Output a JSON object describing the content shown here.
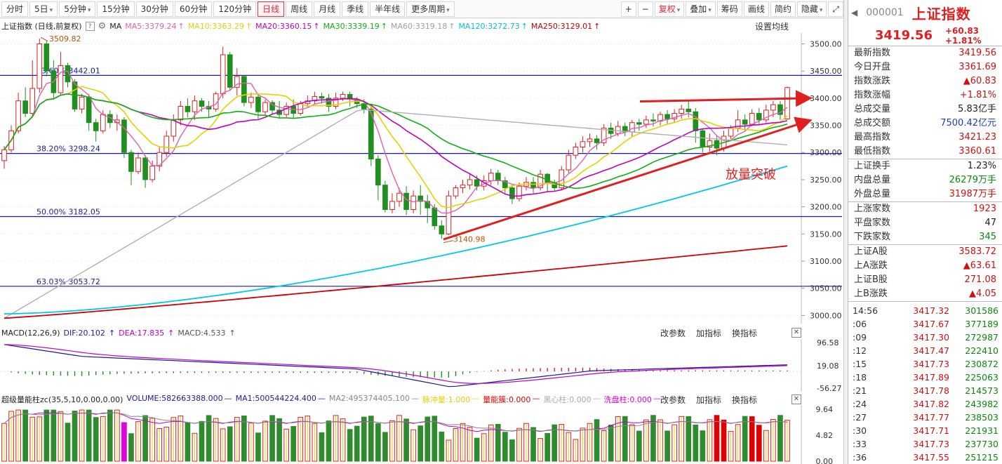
{
  "toolbar": {
    "periods": [
      "分时",
      "5日",
      "5分钟",
      "15分钟",
      "30分钟",
      "60分钟",
      "120分钟",
      "日线",
      "周线",
      "月线",
      "季线",
      "半年线",
      "更多周期"
    ],
    "active": "日线",
    "right": [
      "+",
      "−",
      "复权",
      "叠加",
      "筹码",
      "画线",
      "简约",
      "隐藏"
    ]
  },
  "ma_header": {
    "title": "上证指数 (日线,前复权)",
    "ma": "MA",
    "items": [
      {
        "label": "MA5:3379.24",
        "color": "#e060b0"
      },
      {
        "label": "MA10:3363.29",
        "color": "#e8d000"
      },
      {
        "label": "MA20:3360.15",
        "color": "#c000c0"
      },
      {
        "label": "MA30:3339.19",
        "color": "#10b010"
      },
      {
        "label": "MA60:3319.18",
        "color": "#a0a0a0"
      },
      {
        "label": "MA120:3272.73",
        "color": "#00c0e0"
      },
      {
        "label": "MA250:3129.01",
        "color": "#c00000"
      }
    ],
    "settings": "设置均线"
  },
  "price_axis": [
    "3500.00",
    "3450.00",
    "3400.00",
    "3350.00",
    "3300.00",
    "3250.00",
    "3200.00",
    "3150.00",
    "3100.00",
    "3050.00",
    "3000.00"
  ],
  "fib": [
    {
      "label": "23.60% 3442.01",
      "value": 3442.01
    },
    {
      "label": "38.20% 3298.24",
      "value": 3298.24
    },
    {
      "label": "50.00% 3182.05",
      "value": 3182.05
    },
    {
      "label": "63.03% 3053.72",
      "value": 3053.72
    }
  ],
  "annotations": {
    "high": "3509.82",
    "low": "3140.98",
    "breakout": "放量突破"
  },
  "macd": {
    "title": "MACD(12,26,9)",
    "dif": "DIF:20.102",
    "dea": "DEA:17.835",
    "macd": "MACD:4.533",
    "axis": [
      "96.58",
      "19.08",
      "-56.27"
    ]
  },
  "volume": {
    "title": "超级量能柱zc(35,5,10,0.00,0.00)",
    "items": [
      {
        "label": "VOLUME:582663388.000",
        "color": "#1a1aa0"
      },
      {
        "label": "MA1:500544224.400",
        "color": "#1a1aa0"
      },
      {
        "label": "MA2:495374405.100",
        "color": "#888888"
      },
      {
        "label": "脉冲量:1.000",
        "color": "#e8d000"
      },
      {
        "label": "量能簇:0.000",
        "color": "#e00000"
      },
      {
        "label": "黑心柱:0.000",
        "color": "#aaaaaa"
      },
      {
        "label": "洗盘柱:0.000",
        "color": "#e000e0"
      }
    ],
    "axis": [
      "9.64",
      "4.82",
      "0.00"
    ]
  },
  "indicator_buttons": [
    "改参数",
    "加指标",
    "换指标"
  ],
  "panel": {
    "code": "000001",
    "name": "上证指数",
    "price": "3419.56",
    "change": "+60.83",
    "change_pct": "+1.81%",
    "stats": [
      {
        "label": "最新指数",
        "value": "3419.56",
        "cls": "red"
      },
      {
        "label": "今日开盘",
        "value": "3361.69",
        "cls": "red"
      },
      {
        "label": "指数涨跌",
        "value": "▲60.83",
        "cls": "red"
      },
      {
        "label": "指数涨幅",
        "value": "+1.81%",
        "cls": "red"
      },
      {
        "label": "总成交量",
        "value": "5.83亿手",
        "cls": ""
      },
      {
        "label": "总成交额",
        "value": "7500.42亿元",
        "cls": "blue"
      },
      {
        "label": "最高指数",
        "value": "3421.23",
        "cls": "red"
      },
      {
        "label": "最低指数",
        "value": "3360.61",
        "cls": "red"
      }
    ],
    "stats2": [
      {
        "label": "上证换手",
        "value": "1.23%",
        "cls": ""
      },
      {
        "label": "内盘总量",
        "value": "26279万手",
        "cls": "green"
      },
      {
        "label": "外盘总量",
        "value": "31987万手",
        "cls": "red"
      }
    ],
    "stats3": [
      {
        "label": "上涨家数",
        "value": "1923",
        "cls": "red"
      },
      {
        "label": "平盘家数",
        "value": "47",
        "cls": ""
      },
      {
        "label": "下跌家数",
        "value": "345",
        "cls": "green"
      }
    ],
    "stats4": [
      {
        "label": "上证A股",
        "value": "3583.72",
        "cls": "red"
      },
      {
        "label": "上A涨跌",
        "value": "▲63.61",
        "cls": "red"
      },
      {
        "label": "上证B股",
        "value": "271.08",
        "cls": "red"
      },
      {
        "label": "上B涨跌",
        "value": "▲4.05",
        "cls": "red"
      }
    ],
    "ticks": [
      {
        "t": "14:56",
        "p": "3417.32",
        "v": "301586"
      },
      {
        "t": ":06",
        "p": "3417.67",
        "v": "377189"
      },
      {
        "t": ":09",
        "p": "3417.30",
        "v": "272987"
      },
      {
        "t": ":12",
        "p": "3417.47",
        "v": "222410"
      },
      {
        "t": ":15",
        "p": "3417.73",
        "v": "230872"
      },
      {
        "t": ":18",
        "p": "3417.89",
        "v": "225063"
      },
      {
        "t": ":21",
        "p": "3417.78",
        "v": "214573"
      },
      {
        "t": ":24",
        "p": "3417.82",
        "v": "243982"
      },
      {
        "t": ":27",
        "p": "3417.77",
        "v": "238503"
      },
      {
        "t": ":30",
        "p": "3417.71",
        "v": "221931"
      },
      {
        "t": ":33",
        "p": "3417.73",
        "v": "237730"
      },
      {
        "t": ":36",
        "p": "3417.55",
        "v": "251215"
      }
    ]
  },
  "chart_data": {
    "type": "candlestick",
    "y_range": [
      2985,
      3520
    ],
    "candles": [
      [
        3285,
        3305,
        3270,
        3312
      ],
      [
        3305,
        3340,
        3300,
        3350
      ],
      [
        3340,
        3395,
        3335,
        3410
      ],
      [
        3395,
        3372,
        3365,
        3420
      ],
      [
        3372,
        3418,
        3365,
        3470
      ],
      [
        3418,
        3500,
        3410,
        3509.82
      ],
      [
        3500,
        3450,
        3440,
        3505
      ],
      [
        3450,
        3410,
        3400,
        3470
      ],
      [
        3410,
        3460,
        3405,
        3485
      ],
      [
        3460,
        3430,
        3420,
        3465
      ],
      [
        3430,
        3380,
        3375,
        3435
      ],
      [
        3380,
        3402,
        3372,
        3408
      ],
      [
        3402,
        3355,
        3340,
        3408
      ],
      [
        3355,
        3340,
        3320,
        3362
      ],
      [
        3340,
        3370,
        3335,
        3378
      ],
      [
        3370,
        3355,
        3345,
        3378
      ],
      [
        3355,
        3360,
        3340,
        3370
      ],
      [
        3360,
        3300,
        3290,
        3365
      ],
      [
        3300,
        3265,
        3240,
        3305
      ],
      [
        3265,
        3290,
        3260,
        3300
      ],
      [
        3290,
        3250,
        3235,
        3295
      ],
      [
        3250,
        3275,
        3245,
        3285
      ],
      [
        3275,
        3300,
        3265,
        3310
      ],
      [
        3300,
        3330,
        3292,
        3340
      ],
      [
        3330,
        3360,
        3320,
        3370
      ],
      [
        3360,
        3385,
        3350,
        3395
      ],
      [
        3385,
        3375,
        3365,
        3400
      ],
      [
        3375,
        3395,
        3360,
        3405
      ],
      [
        3395,
        3385,
        3375,
        3400
      ],
      [
        3385,
        3380,
        3365,
        3395
      ],
      [
        3380,
        3408,
        3375,
        3412
      ],
      [
        3408,
        3480,
        3400,
        3495
      ],
      [
        3480,
        3420,
        3415,
        3485
      ],
      [
        3420,
        3440,
        3405,
        3455
      ],
      [
        3440,
        3392,
        3385,
        3442
      ],
      [
        3392,
        3402,
        3382,
        3410
      ],
      [
        3402,
        3375,
        3362,
        3405
      ],
      [
        3375,
        3392,
        3368,
        3398
      ],
      [
        3392,
        3378,
        3370,
        3396
      ],
      [
        3378,
        3370,
        3362,
        3395
      ],
      [
        3370,
        3385,
        3365,
        3392
      ],
      [
        3385,
        3372,
        3364,
        3398
      ],
      [
        3372,
        3390,
        3368,
        3395
      ],
      [
        3390,
        3395,
        3382,
        3405
      ],
      [
        3395,
        3403,
        3388,
        3412
      ],
      [
        3403,
        3400,
        3390,
        3410
      ],
      [
        3400,
        3385,
        3375,
        3408
      ],
      [
        3385,
        3400,
        3380,
        3410
      ],
      [
        3400,
        3407,
        3395,
        3412
      ],
      [
        3407,
        3398,
        3385,
        3412
      ],
      [
        3398,
        3390,
        3382,
        3402
      ],
      [
        3390,
        3380,
        3372,
        3398
      ],
      [
        3380,
        3288,
        3275,
        3385
      ],
      [
        3288,
        3240,
        3212,
        3295
      ],
      [
        3240,
        3195,
        3190,
        3248
      ],
      [
        3195,
        3210,
        3188,
        3225
      ],
      [
        3210,
        3225,
        3200,
        3235
      ],
      [
        3225,
        3195,
        3185,
        3238
      ],
      [
        3195,
        3220,
        3188,
        3230
      ],
      [
        3220,
        3210,
        3185,
        3240
      ],
      [
        3210,
        3198,
        3170,
        3222
      ],
      [
        3198,
        3165,
        3158,
        3205
      ],
      [
        3165,
        3150,
        3140.98,
        3175
      ],
      [
        3150,
        3220,
        3148,
        3230
      ],
      [
        3220,
        3235,
        3215,
        3240
      ],
      [
        3235,
        3240,
        3225,
        3250
      ],
      [
        3240,
        3250,
        3232,
        3262
      ],
      [
        3250,
        3238,
        3230,
        3258
      ],
      [
        3238,
        3248,
        3230,
        3258
      ],
      [
        3248,
        3262,
        3240,
        3270
      ],
      [
        3262,
        3248,
        3240,
        3268
      ],
      [
        3248,
        3235,
        3225,
        3255
      ],
      [
        3235,
        3215,
        3205,
        3240
      ],
      [
        3215,
        3238,
        3210,
        3245
      ],
      [
        3238,
        3245,
        3230,
        3255
      ],
      [
        3245,
        3235,
        3225,
        3255
      ],
      [
        3235,
        3260,
        3230,
        3268
      ],
      [
        3260,
        3245,
        3228,
        3262
      ],
      [
        3245,
        3235,
        3228,
        3250
      ],
      [
        3235,
        3268,
        3230,
        3275
      ],
      [
        3268,
        3295,
        3262,
        3305
      ],
      [
        3295,
        3310,
        3288,
        3318
      ],
      [
        3310,
        3320,
        3300,
        3330
      ],
      [
        3320,
        3325,
        3310,
        3335
      ],
      [
        3325,
        3318,
        3305,
        3332
      ],
      [
        3318,
        3345,
        3312,
        3352
      ],
      [
        3345,
        3335,
        3325,
        3355
      ],
      [
        3335,
        3348,
        3330,
        3358
      ],
      [
        3348,
        3338,
        3330,
        3355
      ],
      [
        3338,
        3355,
        3330,
        3360
      ],
      [
        3355,
        3352,
        3340,
        3362
      ],
      [
        3352,
        3360,
        3345,
        3368
      ],
      [
        3360,
        3358,
        3348,
        3372
      ],
      [
        3358,
        3370,
        3350,
        3375
      ],
      [
        3370,
        3362,
        3352,
        3378
      ],
      [
        3362,
        3372,
        3355,
        3380
      ],
      [
        3372,
        3380,
        3362,
        3388
      ],
      [
        3380,
        3375,
        3365,
        3395
      ],
      [
        3375,
        3340,
        3318,
        3382
      ],
      [
        3340,
        3310,
        3300,
        3345
      ],
      [
        3310,
        3322,
        3302,
        3335
      ],
      [
        3322,
        3308,
        3295,
        3332
      ],
      [
        3308,
        3330,
        3302,
        3340
      ],
      [
        3330,
        3345,
        3325,
        3350
      ],
      [
        3345,
        3360,
        3338,
        3378
      ],
      [
        3360,
        3352,
        3340,
        3370
      ],
      [
        3352,
        3372,
        3348,
        3380
      ],
      [
        3372,
        3360,
        3350,
        3382
      ],
      [
        3360,
        3378,
        3355,
        3388
      ],
      [
        3378,
        3388,
        3365,
        3395
      ],
      [
        3388,
        3370,
        3360,
        3395
      ],
      [
        3361.69,
        3419.56,
        3360.61,
        3421.23
      ]
    ]
  }
}
